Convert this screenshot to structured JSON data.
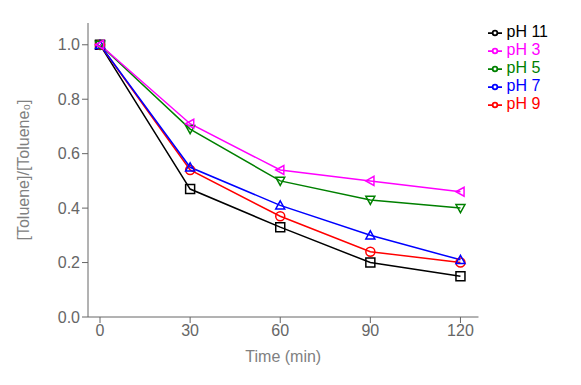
{
  "chart_data": {
    "type": "line",
    "xlabel": "Time (min)",
    "ylabel": "[Toluene]/[Toluene₀]",
    "x": [
      0,
      30,
      60,
      90,
      120
    ],
    "series": [
      {
        "name": "pH 11",
        "color": "#000000",
        "marker": "square",
        "values": [
          1.0,
          0.47,
          0.33,
          0.2,
          0.15
        ]
      },
      {
        "name": "pH 9",
        "color": "#ff0000",
        "marker": "circle",
        "values": [
          1.0,
          0.54,
          0.37,
          0.24,
          0.2
        ]
      },
      {
        "name": "pH 7",
        "color": "#0000ff",
        "marker": "triangle-up",
        "values": [
          1.0,
          0.55,
          0.41,
          0.3,
          0.21
        ]
      },
      {
        "name": "pH 5",
        "color": "#008000",
        "marker": "triangle-down",
        "values": [
          1.0,
          0.69,
          0.5,
          0.43,
          0.4
        ]
      },
      {
        "name": "pH 3",
        "color": "#ff00ff",
        "marker": "triangle-left",
        "values": [
          1.0,
          0.71,
          0.54,
          0.5,
          0.46
        ]
      }
    ],
    "xlim": [
      -4,
      126
    ],
    "ylim": [
      0.0,
      1.08
    ],
    "xticks": [
      0,
      30,
      60,
      90,
      120
    ],
    "yticks": [
      {
        "value": 0.0,
        "label": "0.0"
      },
      0.2,
      0.4,
      0.6,
      0.8,
      {
        "value": 1.0,
        "label": "1.0"
      }
    ],
    "legend": "upper right",
    "grid": false
  }
}
